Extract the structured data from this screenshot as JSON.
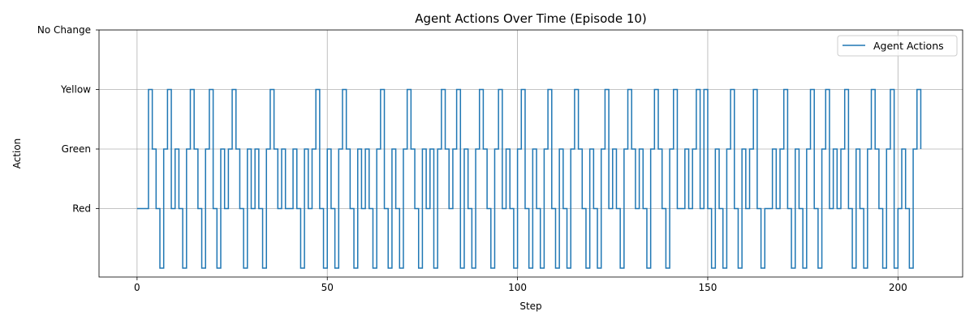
{
  "chart_data": {
    "type": "line",
    "drawstyle": "steps-post",
    "title": "Agent Actions Over Time (Episode 10)",
    "xlabel": "Step",
    "ylabel": "Action",
    "xlim": [
      -10,
      217
    ],
    "ylim": [
      -1.15,
      3
    ],
    "x_ticks": [
      0,
      50,
      100,
      150,
      200
    ],
    "y_ticks": [
      {
        "value": 0,
        "label": "Red"
      },
      {
        "value": 1,
        "label": "Green"
      },
      {
        "value": 2,
        "label": "Yellow"
      },
      {
        "value": 3,
        "label": "No Change"
      }
    ],
    "grid": true,
    "legend": "top-right",
    "color": "#1f77b4",
    "series": [
      {
        "name": "Agent Actions",
        "x_start": 0,
        "x_end": 206,
        "values": [
          0,
          0,
          0,
          2,
          1,
          0,
          -1,
          1,
          2,
          0,
          1,
          0,
          -1,
          1,
          2,
          1,
          0,
          -1,
          1,
          2,
          0,
          -1,
          1,
          0,
          1,
          2,
          1,
          0,
          -1,
          1,
          0,
          1,
          0,
          -1,
          1,
          2,
          1,
          0,
          1,
          0,
          0,
          1,
          0,
          -1,
          1,
          0,
          1,
          2,
          0,
          -1,
          1,
          0,
          -1,
          1,
          2,
          1,
          0,
          -1,
          1,
          0,
          1,
          0,
          -1,
          1,
          2,
          0,
          -1,
          1,
          0,
          -1,
          1,
          2,
          1,
          0,
          -1,
          1,
          0,
          1,
          -1,
          1,
          2,
          1,
          0,
          1,
          2,
          -1,
          1,
          0,
          -1,
          1,
          2,
          1,
          0,
          -1,
          1,
          2,
          0,
          1,
          0,
          -1,
          1,
          2,
          0,
          -1,
          1,
          0,
          -1,
          1,
          2,
          0,
          -1,
          1,
          0,
          -1,
          1,
          2,
          1,
          0,
          -1,
          1,
          0,
          -1,
          1,
          2,
          0,
          1,
          0,
          -1,
          1,
          2,
          1,
          0,
          1,
          0,
          -1,
          1,
          2,
          1,
          0,
          -1,
          1,
          2,
          0,
          0,
          1,
          0,
          1,
          2,
          0,
          2,
          0,
          -1,
          1,
          0,
          -1,
          1,
          2,
          0,
          -1,
          1,
          0,
          1,
          2,
          0,
          -1,
          0,
          0,
          1,
          0,
          1,
          2,
          0,
          -1,
          1,
          0,
          -1,
          1,
          2,
          0,
          -1,
          1,
          2,
          0,
          1,
          0,
          1,
          2,
          0,
          -1,
          1,
          0,
          -1,
          1,
          2,
          1,
          0,
          -1,
          1,
          2,
          -1,
          0,
          1,
          0,
          -1,
          1,
          2,
          1
        ]
      }
    ]
  }
}
